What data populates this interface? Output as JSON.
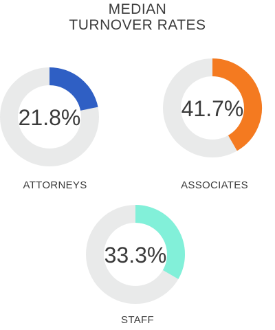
{
  "title_line1": "MEDIAN",
  "title_line2": "TURNOVER RATES",
  "colors": {
    "track": "#e9eaea",
    "attorneys": "#2f5fc4",
    "associates": "#f47a20",
    "staff": "#82f0d9"
  },
  "chart_data": {
    "type": "pie",
    "title": "MEDIAN TURNOVER RATES",
    "unit": "%",
    "series": [
      {
        "name": "ATTORNEYS",
        "value": 21.8,
        "label": "21.8%",
        "color_key": "attorneys"
      },
      {
        "name": "ASSOCIATES",
        "value": 41.7,
        "label": "41.7%",
        "color_key": "associates"
      },
      {
        "name": "STAFF",
        "value": 33.3,
        "label": "33.3%",
        "color_key": "staff"
      }
    ]
  }
}
